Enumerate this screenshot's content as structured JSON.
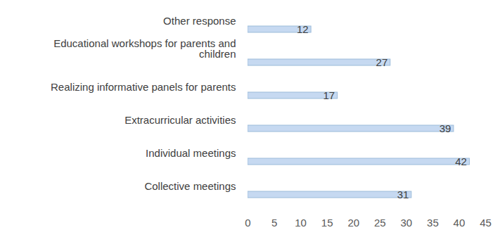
{
  "chart_data": {
    "type": "bar",
    "orientation": "horizontal",
    "categories": [
      "Other response",
      "Educational workshops for parents and children",
      "Realizing informative panels for parents",
      "Extracurricular activities",
      "Individual meetings",
      "Collective meetings"
    ],
    "values": [
      12,
      27,
      17,
      39,
      42,
      31
    ],
    "color": "#c6d9f1",
    "xlim": [
      0,
      45
    ],
    "xticks": [
      0,
      5,
      10,
      15,
      20,
      25,
      30,
      35,
      40,
      45
    ],
    "grid": false,
    "data_labels": true
  }
}
